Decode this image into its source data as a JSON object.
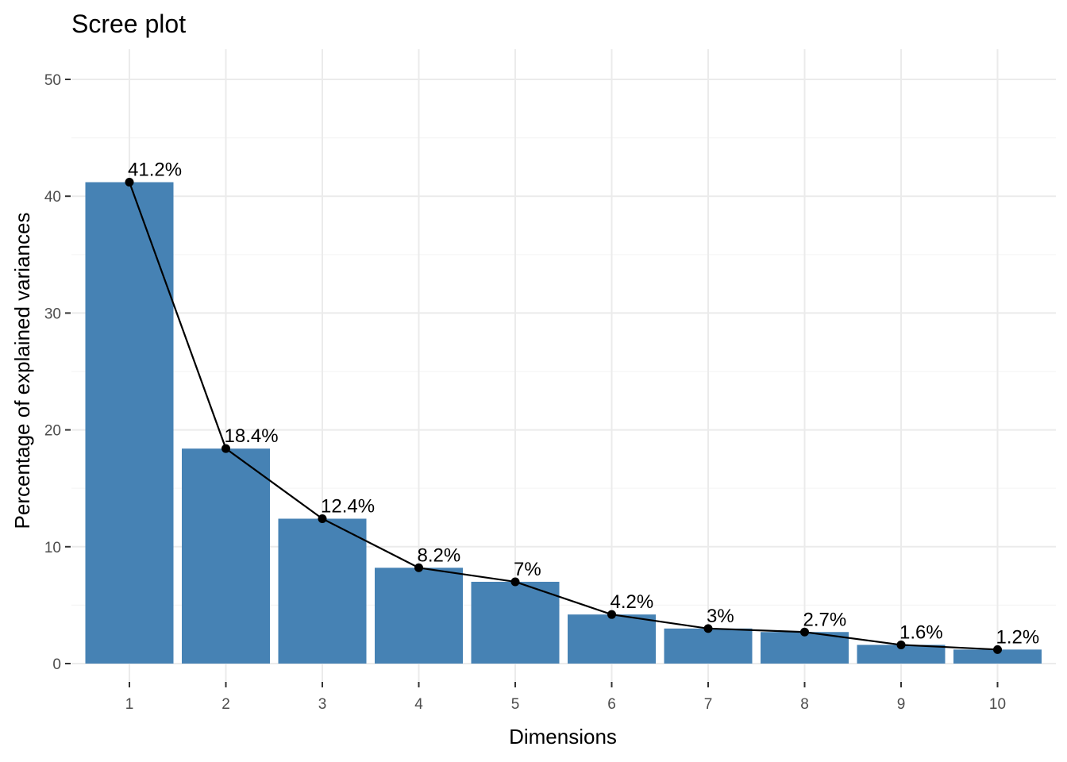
{
  "chart_data": {
    "type": "bar",
    "title": "Scree plot",
    "xlabel": "Dimensions",
    "ylabel": "Percentage of explained variances",
    "categories": [
      "1",
      "2",
      "3",
      "4",
      "5",
      "6",
      "7",
      "8",
      "9",
      "10"
    ],
    "values": [
      41.2,
      18.4,
      12.4,
      8.2,
      7.0,
      4.2,
      3.0,
      2.7,
      1.6,
      1.2
    ],
    "data_labels": [
      "41.2%",
      "18.4%",
      "12.4%",
      "8.2%",
      "7%",
      "4.2%",
      "3%",
      "2.7%",
      "1.6%",
      "1.2%"
    ],
    "ylim": [
      0,
      52
    ],
    "yticks": [
      0,
      10,
      20,
      30,
      40,
      50
    ],
    "line_overlay": true,
    "grid": true,
    "legend": "none",
    "colors": {
      "bar": "#4682B4",
      "line": "#000000",
      "point": "#000000",
      "grid_major": "#EBEBEB",
      "grid_minor": "#F5F5F5"
    }
  }
}
